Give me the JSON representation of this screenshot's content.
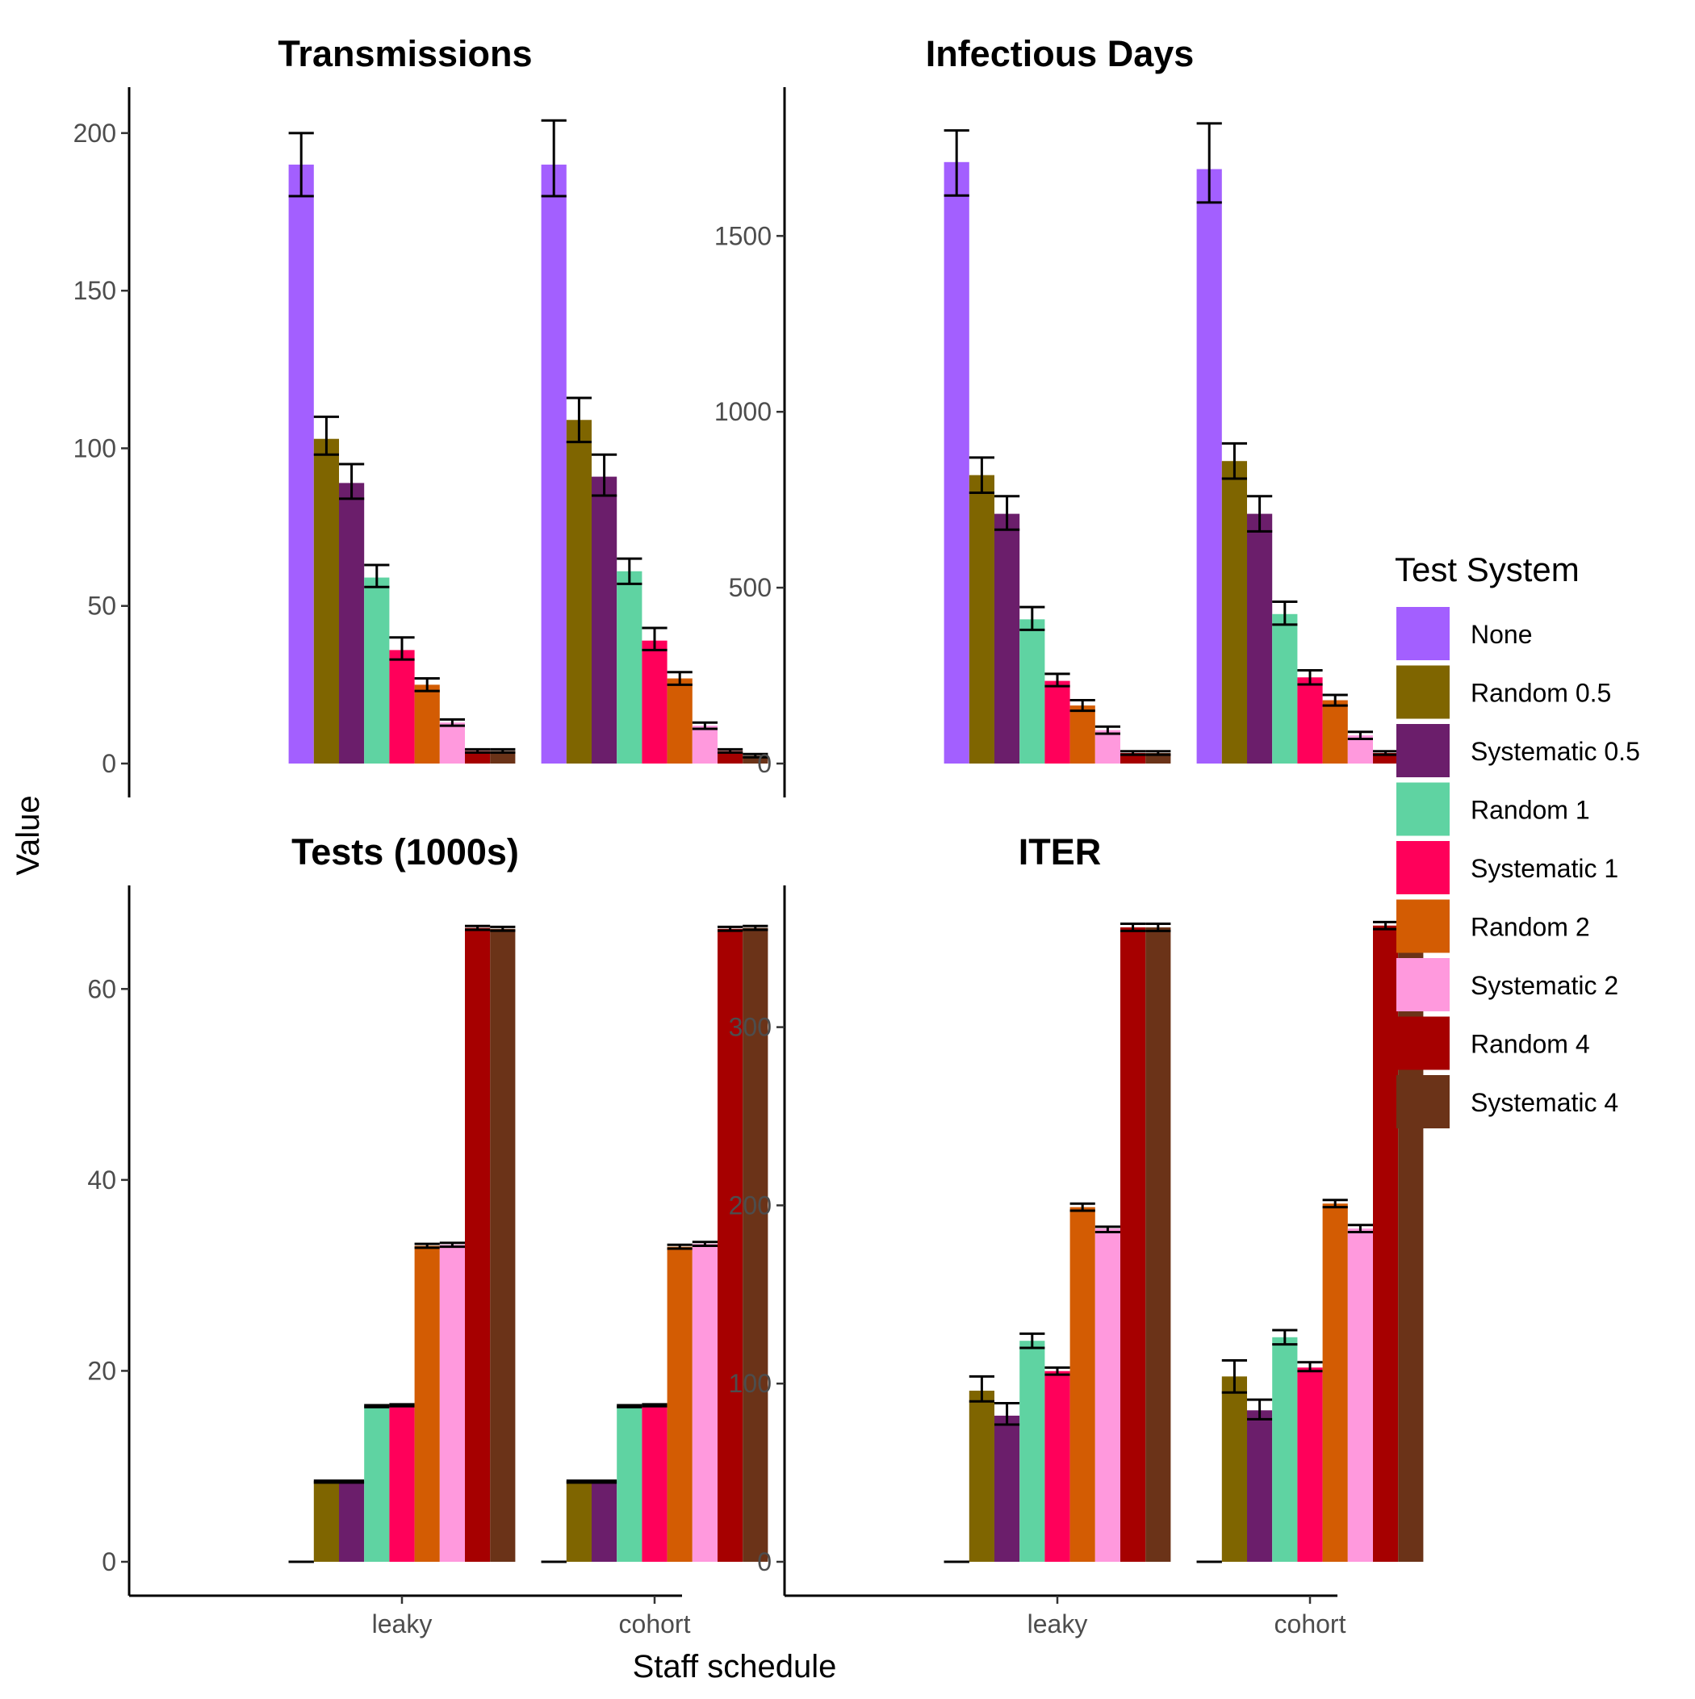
{
  "chart_data": {
    "type": "bar",
    "xlabel": "Staff schedule",
    "ylabel": "Value",
    "categories": [
      "leaky",
      "cohort"
    ],
    "legend": {
      "title": "Test System",
      "position": "right",
      "entries": [
        {
          "name": "None",
          "color": "#A35FFF"
        },
        {
          "name": "Random 0.5",
          "color": "#7F6500"
        },
        {
          "name": "Systematic 0.5",
          "color": "#6B1E6B"
        },
        {
          "name": "Random 1",
          "color": "#5FD3A2"
        },
        {
          "name": "Systematic 1",
          "color": "#FF005A"
        },
        {
          "name": "Random 2",
          "color": "#D35C03"
        },
        {
          "name": "Systematic 2",
          "color": "#FF99DD"
        },
        {
          "name": "Random 4",
          "color": "#A60000"
        },
        {
          "name": "Systematic 4",
          "color": "#6B3318"
        }
      ]
    },
    "grid": false,
    "panels": [
      {
        "title": "Transmissions",
        "ylim": [
          0,
          212
        ],
        "yticks": [
          0,
          50,
          100,
          150,
          200
        ],
        "series_values": {
          "leaky": [
            190,
            103,
            89,
            59,
            36,
            25,
            13,
            4,
            4
          ],
          "cohort": [
            190,
            109,
            91,
            61,
            39,
            27,
            12,
            4,
            2.5
          ]
        },
        "errors": {
          "leaky": [
            [
              180,
              200
            ],
            [
              98,
              110
            ],
            [
              84,
              95
            ],
            [
              56,
              63
            ],
            [
              33,
              40
            ],
            [
              23,
              27
            ],
            [
              12,
              14
            ],
            [
              3.5,
              4.5
            ],
            [
              3.5,
              4.5
            ]
          ],
          "cohort": [
            [
              180,
              204
            ],
            [
              102,
              116
            ],
            [
              85,
              98
            ],
            [
              57,
              65
            ],
            [
              36,
              43
            ],
            [
              25,
              29
            ],
            [
              11,
              13
            ],
            [
              3.5,
              4.5
            ],
            [
              2,
              3
            ]
          ]
        }
      },
      {
        "title": "Infectious Days",
        "ylim": [
          0,
          1900
        ],
        "yticks": [
          0,
          500,
          1000,
          1500
        ],
        "series_values": {
          "leaky": [
            1710,
            820,
            710,
            410,
            235,
            165,
            95,
            30,
            30
          ],
          "cohort": [
            1690,
            860,
            710,
            425,
            245,
            180,
            80,
            30,
            20
          ]
        },
        "errors": {
          "leaky": [
            [
              1615,
              1800
            ],
            [
              770,
              870
            ],
            [
              665,
              760
            ],
            [
              380,
              445
            ],
            [
              220,
              255
            ],
            [
              150,
              180
            ],
            [
              85,
              105
            ],
            [
              25,
              35
            ],
            [
              25,
              35
            ]
          ],
          "cohort": [
            [
              1595,
              1820
            ],
            [
              810,
              910
            ],
            [
              660,
              760
            ],
            [
              395,
              460
            ],
            [
              225,
              265
            ],
            [
              165,
              195
            ],
            [
              70,
              90
            ],
            [
              25,
              35
            ],
            [
              15,
              25
            ]
          ]
        }
      },
      {
        "title": "Tests (1000s)",
        "ylim": [
          0,
          70
        ],
        "yticks": [
          0,
          20,
          40,
          60
        ],
        "series_values": {
          "leaky": [
            0,
            8.4,
            8.4,
            16.3,
            16.4,
            33.1,
            33.2,
            66.4,
            66.3
          ],
          "cohort": [
            0,
            8.4,
            8.4,
            16.3,
            16.4,
            33.0,
            33.3,
            66.3,
            66.4
          ]
        },
        "errors": {
          "leaky": [
            [
              0,
              0
            ],
            [
              8.3,
              8.5
            ],
            [
              8.3,
              8.5
            ],
            [
              16.2,
              16.4
            ],
            [
              16.3,
              16.5
            ],
            [
              32.9,
              33.3
            ],
            [
              33.0,
              33.4
            ],
            [
              66.2,
              66.6
            ],
            [
              66.1,
              66.5
            ]
          ],
          "cohort": [
            [
              0,
              0
            ],
            [
              8.3,
              8.5
            ],
            [
              8.3,
              8.5
            ],
            [
              16.2,
              16.4
            ],
            [
              16.3,
              16.5
            ],
            [
              32.8,
              33.2
            ],
            [
              33.1,
              33.5
            ],
            [
              66.1,
              66.5
            ],
            [
              66.2,
              66.6
            ]
          ]
        }
      },
      {
        "title": "ITER",
        "ylim": [
          0,
          375
        ],
        "yticks": [
          0,
          100,
          200,
          300
        ],
        "series_values": {
          "leaky": [
            0,
            96,
            82,
            124,
            107,
            199,
            187,
            356,
            356
          ],
          "cohort": [
            0,
            104,
            85,
            126,
            109,
            201,
            187,
            357,
            354
          ]
        },
        "errors": {
          "leaky": [
            [
              0,
              0
            ],
            [
              90,
              104
            ],
            [
              77,
              89
            ],
            [
              120,
              128
            ],
            [
              105,
              109
            ],
            [
              197,
              201
            ],
            [
              185,
              188
            ],
            [
              354,
              358
            ],
            [
              354,
              358
            ]
          ],
          "cohort": [
            [
              0,
              0
            ],
            [
              95,
              113
            ],
            [
              80,
              91
            ],
            [
              122,
              130
            ],
            [
              107,
              112
            ],
            [
              199,
              203
            ],
            [
              185,
              189
            ],
            [
              355,
              359
            ],
            [
              352,
              356
            ]
          ]
        }
      }
    ]
  }
}
